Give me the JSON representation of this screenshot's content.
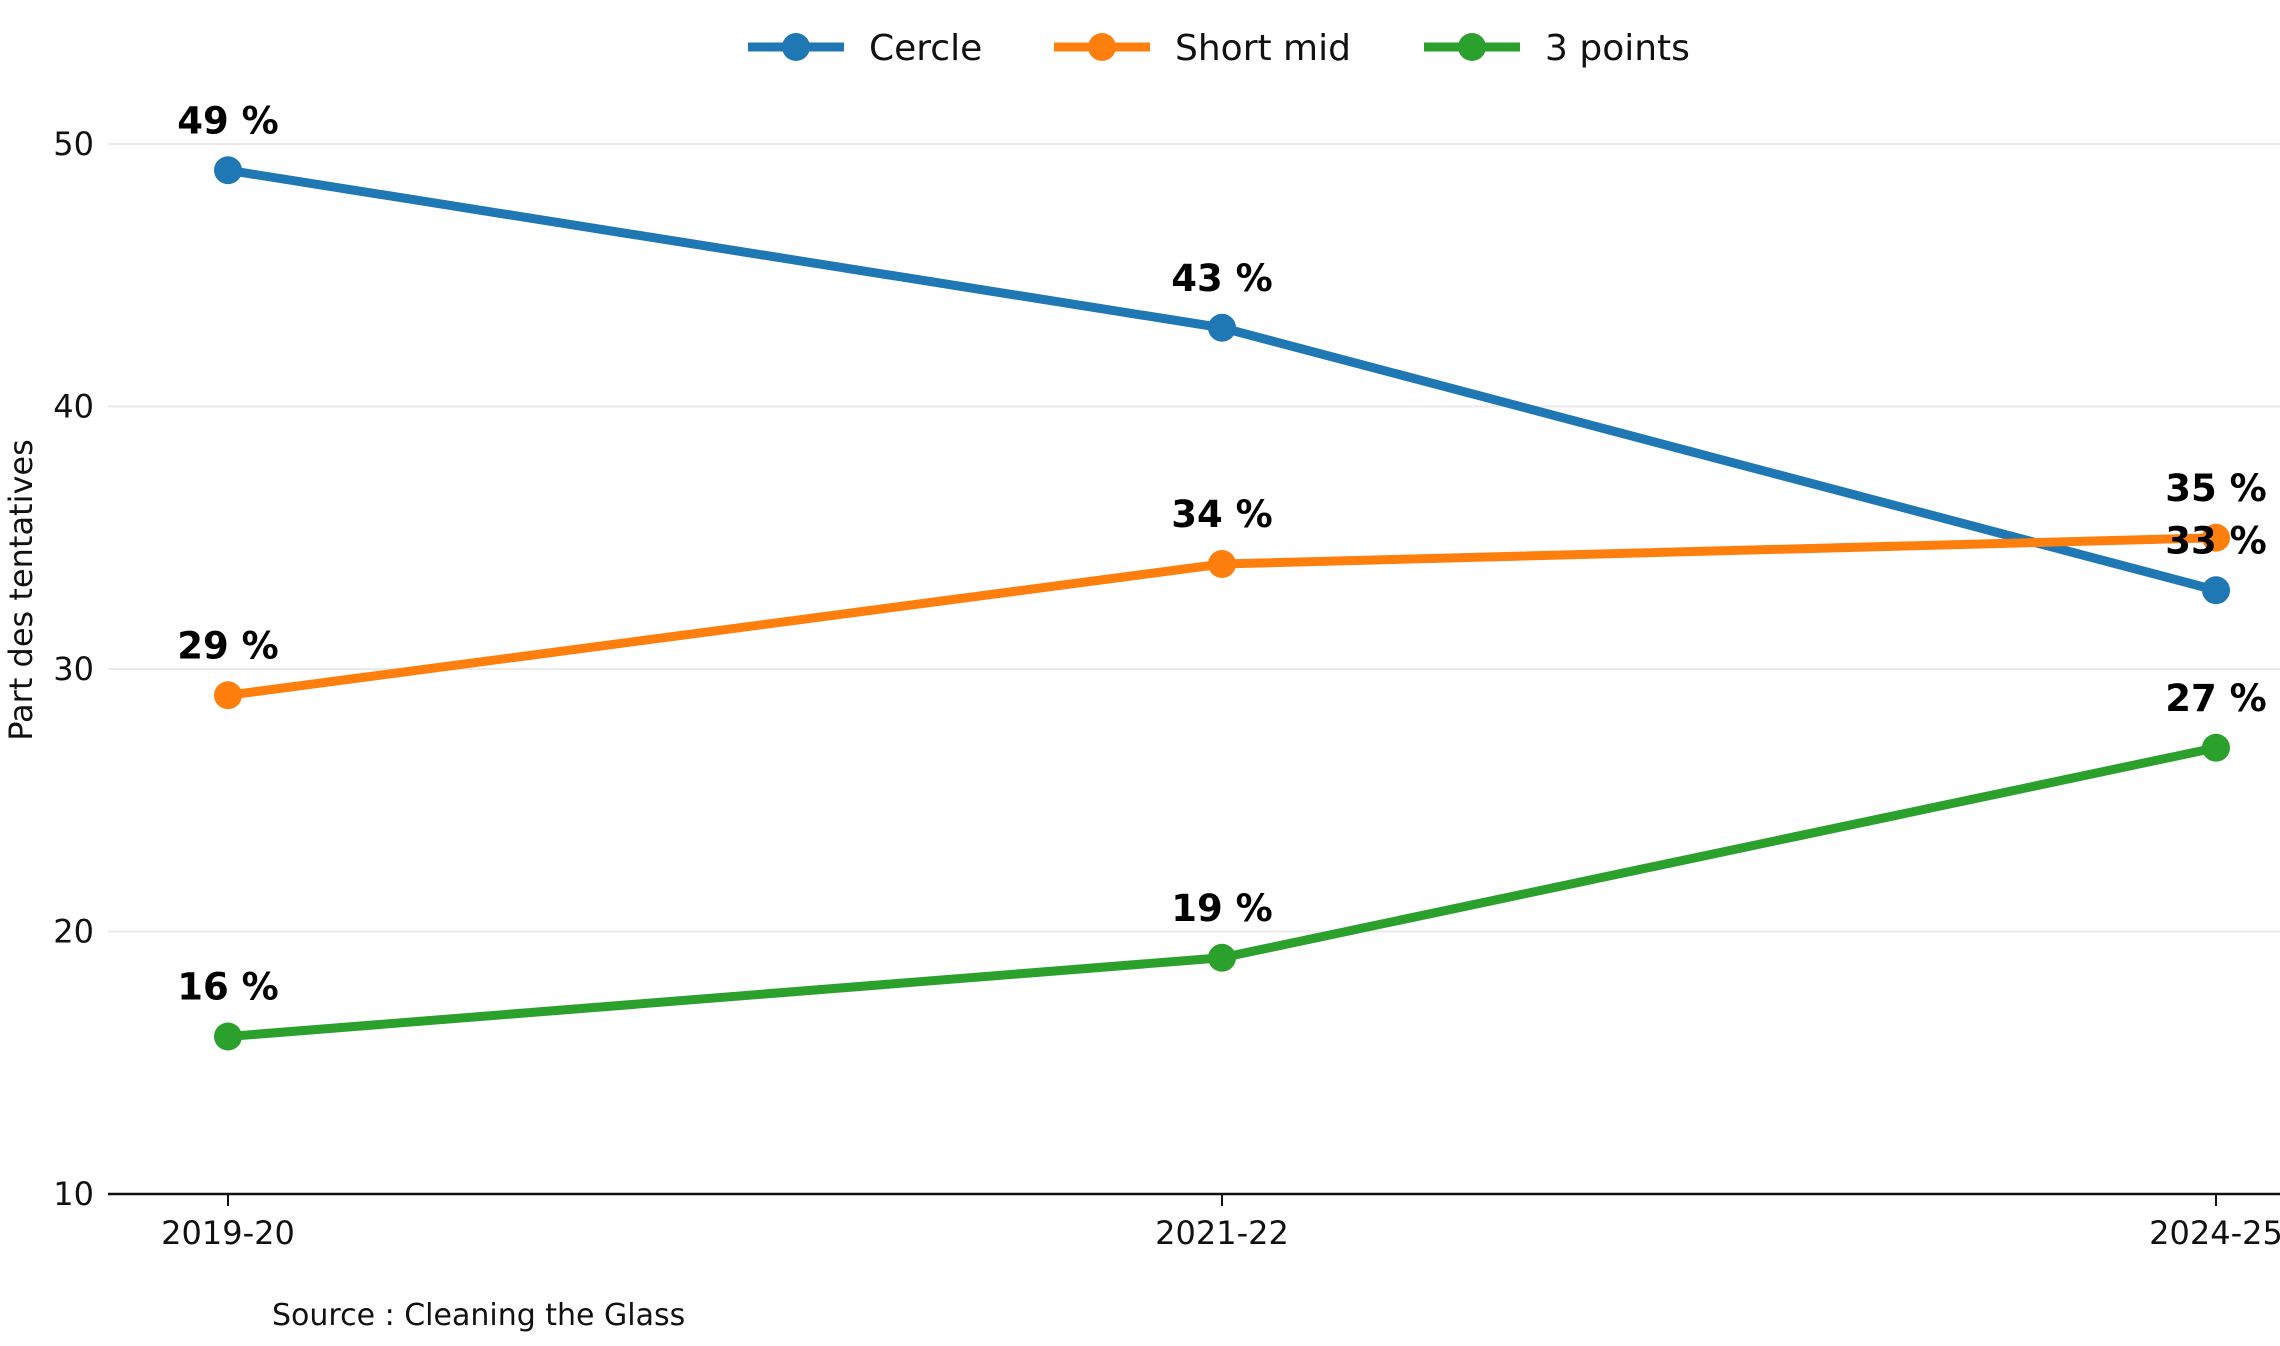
{
  "chart_data": {
    "type": "line",
    "title": "",
    "xlabel": "",
    "ylabel": "Part des tentatives",
    "categories": [
      "2019-20",
      "2021-22",
      "2024-25"
    ],
    "ylim": [
      10,
      52
    ],
    "yticks": [
      10,
      20,
      30,
      40,
      50
    ],
    "grid": "horizontal",
    "legend_position": "top-center",
    "series": [
      {
        "name": "Cercle",
        "color": "#1f77b4",
        "values": [
          49,
          43,
          33
        ],
        "labels": [
          "49 %",
          "43 %",
          "33 %"
        ]
      },
      {
        "name": "Short mid",
        "color": "#ff7f0e",
        "values": [
          29,
          34,
          35
        ],
        "labels": [
          "29 %",
          "34 %",
          "35 %"
        ]
      },
      {
        "name": "3 points",
        "color": "#2ca02c",
        "values": [
          16,
          19,
          27
        ],
        "labels": [
          "16 %",
          "19 %",
          "27 %"
        ]
      }
    ],
    "source": "Source : Cleaning the Glass"
  }
}
